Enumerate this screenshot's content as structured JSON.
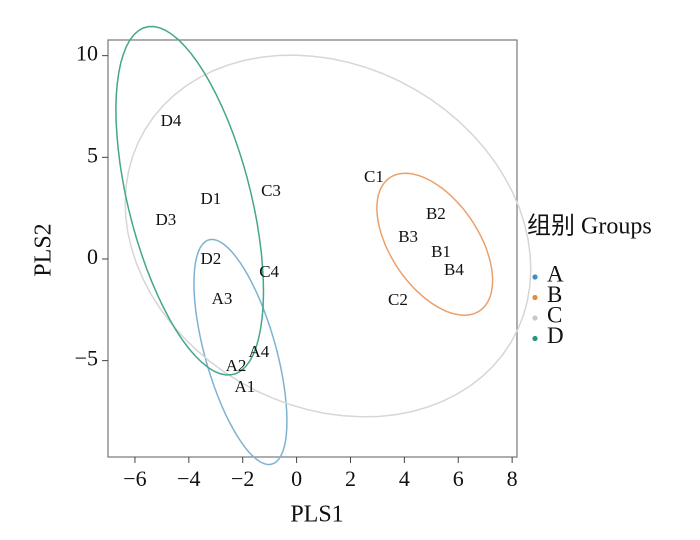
{
  "chart_data": {
    "type": "scatter",
    "x_label": "PLS1",
    "y_label": "PLS2",
    "legend_title": "组别 Groups",
    "xlim": [
      -7.0,
      8.18
    ],
    "ylim": [
      -9.74,
      10.77
    ],
    "xticks": [
      {
        "value": -6,
        "label": "−6"
      },
      {
        "value": -4,
        "label": "−4"
      },
      {
        "value": -2,
        "label": "−2"
      },
      0,
      2,
      4,
      6,
      8
    ],
    "yticks": [
      {
        "value": -5,
        "label": "−5"
      },
      0,
      5,
      10
    ],
    "grid": false,
    "legend": "right",
    "series": [
      {
        "name": "A",
        "color": "#3b8fc4",
        "ellipse_color": "#7fb2d2",
        "labels": [
          "A1",
          "A2",
          "A3",
          "A4"
        ],
        "x": [
          -1.92,
          -2.25,
          -2.77,
          -1.4
        ],
        "y": [
          -6.35,
          -5.31,
          -2.02,
          -4.62
        ]
      },
      {
        "name": "B",
        "color": "#e8883a",
        "ellipse_color": "#eba06a",
        "labels": [
          "B1",
          "B2",
          "B3",
          "B4"
        ],
        "x": [
          5.36,
          5.17,
          4.14,
          5.84
        ],
        "y": [
          0.3,
          2.16,
          1.03,
          -0.59
        ]
      },
      {
        "name": "C",
        "color": "#c8c8c8",
        "ellipse_color": "#d6d6d6",
        "labels": [
          "C1",
          "C2",
          "C3",
          "C4"
        ],
        "x": [
          2.87,
          3.76,
          -0.95,
          -1.02
        ],
        "y": [
          3.98,
          -2.07,
          3.3,
          -0.69
        ]
      },
      {
        "name": "D",
        "color": "#23977c",
        "ellipse_color": "#43a68e",
        "labels": [
          "D1",
          "D2",
          "D3",
          "D4"
        ],
        "x": [
          -3.18,
          -3.18,
          -4.85,
          -4.66
        ],
        "y": [
          2.9,
          -0.05,
          1.87,
          6.74
        ]
      }
    ]
  }
}
